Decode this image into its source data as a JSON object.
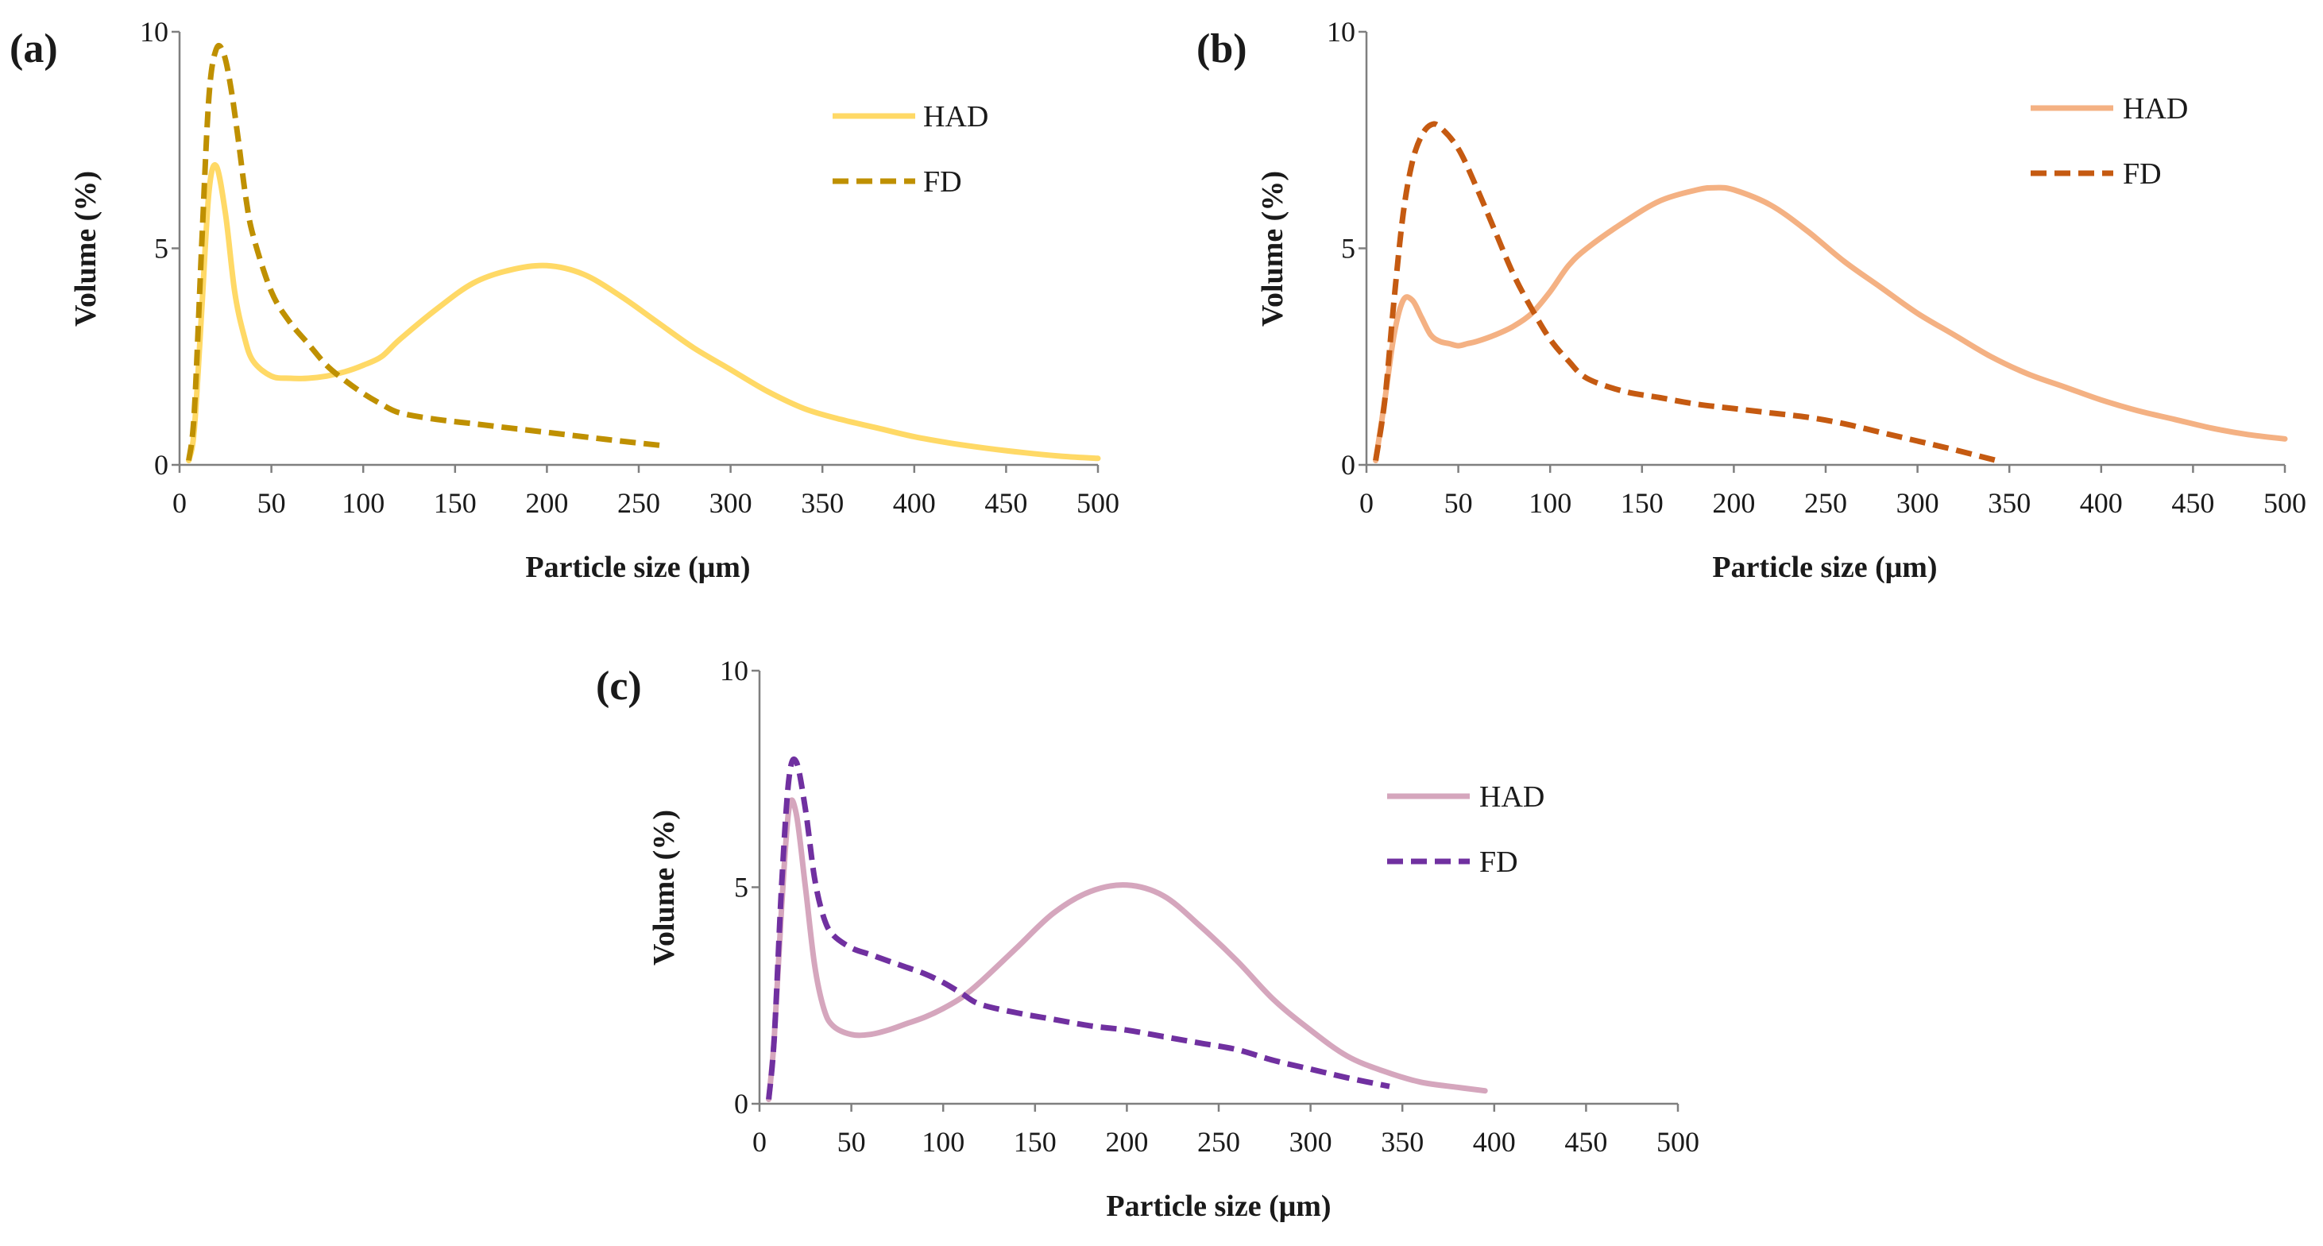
{
  "chart_data": [
    {
      "type": "line",
      "panel_label": "(a)",
      "xlabel": "Particle size (μm)",
      "ylabel": "Volume (%)",
      "xlim": [
        0,
        500
      ],
      "ylim": [
        0,
        10
      ],
      "xticks": [
        0,
        50,
        100,
        150,
        200,
        250,
        300,
        350,
        400,
        450,
        500
      ],
      "yticks": [
        0,
        5,
        10
      ],
      "legend_position": "top-right",
      "series": [
        {
          "name": "HAD",
          "style": "solid",
          "color": "#FFD966",
          "x": [
            5,
            8,
            12,
            16,
            20,
            25,
            30,
            35,
            40,
            50,
            60,
            70,
            80,
            90,
            100,
            110,
            120,
            140,
            160,
            180,
            200,
            220,
            240,
            260,
            280,
            300,
            320,
            340,
            360,
            380,
            400,
            420,
            440,
            460,
            480,
            500
          ],
          "y": [
            0.1,
            0.8,
            3.5,
            6.3,
            6.9,
            5.8,
            4.0,
            3.0,
            2.4,
            2.05,
            2.0,
            2.0,
            2.05,
            2.15,
            2.3,
            2.5,
            2.9,
            3.6,
            4.2,
            4.5,
            4.6,
            4.4,
            3.9,
            3.3,
            2.7,
            2.2,
            1.7,
            1.3,
            1.05,
            0.85,
            0.65,
            0.5,
            0.38,
            0.28,
            0.2,
            0.15
          ]
        },
        {
          "name": "FD",
          "style": "dashed",
          "color": "#BF9000",
          "x": [
            5,
            8,
            12,
            16,
            20,
            24,
            28,
            32,
            36,
            40,
            50,
            60,
            70,
            80,
            90,
            100,
            110,
            120,
            140,
            160,
            180,
            200,
            220,
            240,
            262
          ],
          "y": [
            0.1,
            1.2,
            5.0,
            8.5,
            9.6,
            9.5,
            8.7,
            7.5,
            6.2,
            5.3,
            4.0,
            3.3,
            2.8,
            2.3,
            1.95,
            1.65,
            1.4,
            1.2,
            1.05,
            0.95,
            0.85,
            0.75,
            0.65,
            0.55,
            0.45
          ]
        }
      ]
    },
    {
      "type": "line",
      "panel_label": "(b)",
      "xlabel": "Particle size (μm)",
      "ylabel": "Volume (%)",
      "xlim": [
        0,
        500
      ],
      "ylim": [
        0,
        10
      ],
      "xticks": [
        0,
        50,
        100,
        150,
        200,
        250,
        300,
        350,
        400,
        450,
        500
      ],
      "yticks": [
        0,
        5,
        10
      ],
      "legend_position": "top-right",
      "series": [
        {
          "name": "HAD",
          "style": "solid",
          "color": "#F4B183",
          "x": [
            5,
            10,
            15,
            20,
            25,
            30,
            35,
            40,
            45,
            50,
            55,
            60,
            70,
            80,
            90,
            100,
            110,
            120,
            140,
            160,
            180,
            190,
            200,
            220,
            240,
            260,
            280,
            300,
            320,
            340,
            360,
            380,
            400,
            420,
            440,
            460,
            480,
            500
          ],
          "y": [
            0.1,
            1.5,
            3.0,
            3.8,
            3.8,
            3.4,
            3.0,
            2.85,
            2.8,
            2.75,
            2.8,
            2.85,
            3.0,
            3.2,
            3.5,
            4.0,
            4.6,
            5.0,
            5.6,
            6.1,
            6.35,
            6.4,
            6.35,
            6.0,
            5.4,
            4.7,
            4.1,
            3.5,
            3.0,
            2.5,
            2.1,
            1.8,
            1.5,
            1.25,
            1.05,
            0.85,
            0.7,
            0.6
          ]
        },
        {
          "name": "FD",
          "style": "dashed",
          "color": "#C55A11",
          "x": [
            5,
            10,
            15,
            20,
            25,
            30,
            35,
            40,
            50,
            60,
            70,
            80,
            90,
            100,
            110,
            120,
            140,
            160,
            180,
            200,
            220,
            240,
            260,
            280,
            300,
            320,
            343
          ],
          "y": [
            0.1,
            1.5,
            3.8,
            5.8,
            7.0,
            7.6,
            7.85,
            7.8,
            7.3,
            6.4,
            5.4,
            4.4,
            3.6,
            2.9,
            2.4,
            2.0,
            1.7,
            1.55,
            1.4,
            1.3,
            1.2,
            1.1,
            0.95,
            0.75,
            0.55,
            0.35,
            0.1
          ]
        }
      ]
    },
    {
      "type": "line",
      "panel_label": "(c)",
      "xlabel": "Particle size (μm)",
      "ylabel": "Volume (%)",
      "xlim": [
        0,
        500
      ],
      "ylim": [
        0,
        10
      ],
      "xticks": [
        0,
        50,
        100,
        150,
        200,
        250,
        300,
        350,
        400,
        450,
        500
      ],
      "yticks": [
        0,
        5,
        10
      ],
      "legend_position": "right",
      "series": [
        {
          "name": "HAD",
          "style": "solid",
          "color": "#D5A6BD",
          "x": [
            5,
            8,
            12,
            16,
            20,
            25,
            30,
            35,
            40,
            50,
            60,
            70,
            80,
            90,
            100,
            110,
            120,
            140,
            160,
            180,
            200,
            220,
            240,
            260,
            280,
            300,
            320,
            340,
            360,
            380,
            395
          ],
          "y": [
            0.1,
            1.5,
            4.5,
            6.8,
            6.7,
            5.0,
            3.2,
            2.2,
            1.8,
            1.6,
            1.6,
            1.7,
            1.85,
            2.0,
            2.2,
            2.45,
            2.8,
            3.6,
            4.4,
            4.9,
            5.05,
            4.8,
            4.1,
            3.3,
            2.4,
            1.7,
            1.1,
            0.75,
            0.5,
            0.38,
            0.3
          ]
        },
        {
          "name": "FD",
          "style": "dashed",
          "color": "#7030A0",
          "x": [
            5,
            8,
            12,
            16,
            20,
            25,
            30,
            35,
            40,
            50,
            60,
            70,
            80,
            90,
            100,
            110,
            120,
            140,
            160,
            180,
            200,
            220,
            240,
            260,
            280,
            300,
            320,
            343
          ],
          "y": [
            0.1,
            1.5,
            5.0,
            7.5,
            7.9,
            6.8,
            5.2,
            4.3,
            3.9,
            3.6,
            3.45,
            3.3,
            3.15,
            3.0,
            2.8,
            2.55,
            2.3,
            2.1,
            1.95,
            1.8,
            1.7,
            1.55,
            1.4,
            1.25,
            1.0,
            0.8,
            0.6,
            0.4
          ]
        }
      ]
    }
  ]
}
